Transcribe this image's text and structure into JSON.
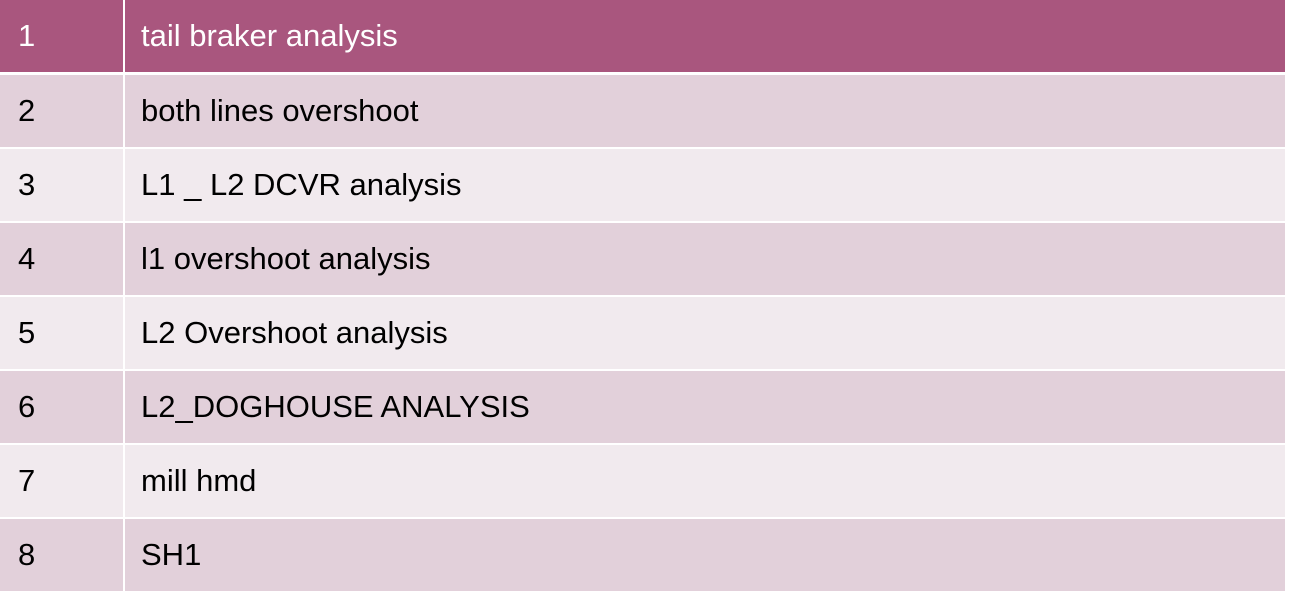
{
  "table": {
    "rows": [
      {
        "num": "1",
        "name": "tail braker analysis"
      },
      {
        "num": "2",
        "name": "both lines overshoot"
      },
      {
        "num": "3",
        "name": "L1 _ L2 DCVR analysis"
      },
      {
        "num": "4",
        "name": "l1 overshoot analysis"
      },
      {
        "num": "5",
        "name": "L2 Overshoot analysis"
      },
      {
        "num": "6",
        "name": "L2_DOGHOUSE ANALYSIS"
      },
      {
        "num": "7",
        "name": "mill hmd"
      },
      {
        "num": "8",
        "name": "SH1"
      }
    ]
  },
  "colors": {
    "header_bg": "#a9567e",
    "row_dark": "#e2d0da",
    "row_light": "#f1eaee"
  }
}
